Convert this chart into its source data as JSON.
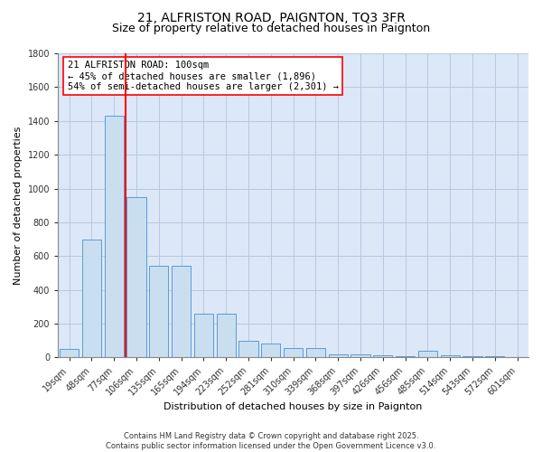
{
  "title1": "21, ALFRISTON ROAD, PAIGNTON, TQ3 3FR",
  "title2": "Size of property relative to detached houses in Paignton",
  "xlabel": "Distribution of detached houses by size in Paignton",
  "ylabel": "Number of detached properties",
  "categories": [
    "19sqm",
    "48sqm",
    "77sqm",
    "106sqm",
    "135sqm",
    "165sqm",
    "194sqm",
    "223sqm",
    "252sqm",
    "281sqm",
    "310sqm",
    "339sqm",
    "368sqm",
    "397sqm",
    "426sqm",
    "456sqm",
    "485sqm",
    "514sqm",
    "543sqm",
    "572sqm",
    "601sqm"
  ],
  "values": [
    50,
    700,
    1430,
    950,
    540,
    540,
    260,
    260,
    100,
    80,
    55,
    55,
    20,
    18,
    15,
    5,
    40,
    15,
    5,
    5,
    2
  ],
  "bar_color": "#c9dff0",
  "bar_edge_color": "#5b9bd5",
  "vline_x": 2.5,
  "vline_color": "red",
  "annotation_text": "21 ALFRISTON ROAD: 100sqm\n← 45% of detached houses are smaller (1,896)\n54% of semi-detached houses are larger (2,301) →",
  "annotation_box_color": "white",
  "annotation_box_edge": "red",
  "ylim": [
    0,
    1800
  ],
  "yticks": [
    0,
    200,
    400,
    600,
    800,
    1000,
    1200,
    1400,
    1600,
    1800
  ],
  "footer": "Contains HM Land Registry data © Crown copyright and database right 2025.\nContains public sector information licensed under the Open Government Licence v3.0.",
  "bg_color": "#dce8f8",
  "grid_color": "#b8c8e0",
  "title_fontsize": 10,
  "subtitle_fontsize": 9,
  "tick_fontsize": 7,
  "ylabel_fontsize": 8,
  "xlabel_fontsize": 8,
  "annotation_fontsize": 7.5,
  "footer_fontsize": 6
}
